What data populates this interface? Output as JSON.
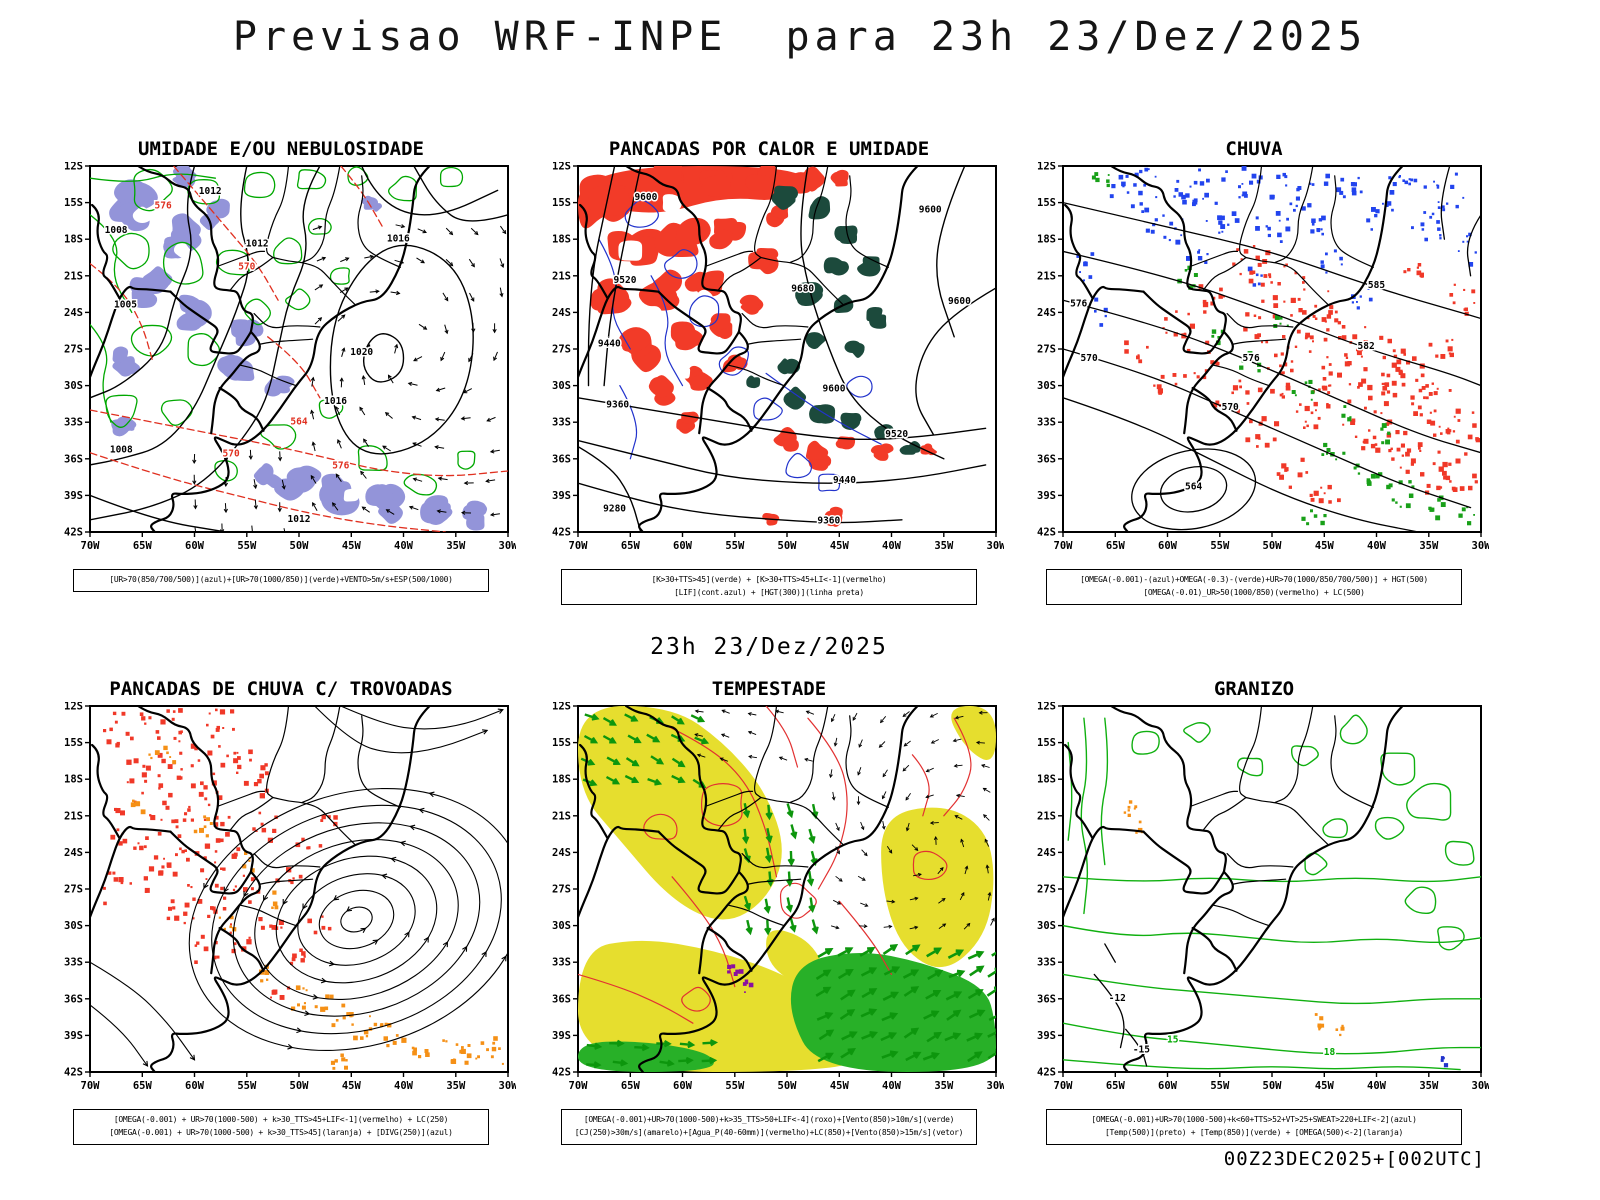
{
  "page": {
    "title": "Previsao WRF-INPE  para 23h 23/Dez/2025",
    "center_time_label": "23h 23/Dez/2025",
    "run_label": "00Z23DEC2025+[002UTC]"
  },
  "axes": {
    "lat_ticks": [
      "12S",
      "15S",
      "18S",
      "21S",
      "24S",
      "27S",
      "30S",
      "33S",
      "36S",
      "39S",
      "42S"
    ],
    "lon_ticks": [
      "70W",
      "65W",
      "60W",
      "55W",
      "50W",
      "45W",
      "40W",
      "35W",
      "30W"
    ]
  },
  "colors": {
    "humidity_fill": "#9394D9",
    "green_contour": "#00A800",
    "red_fill": "#F23B28",
    "red_contour": "#E03020",
    "dark_green_fill": "#1C4A3C",
    "blue_contour": "#2233CC",
    "blue_fill": "#2244EE",
    "orange_fill": "#F59016",
    "yellow_fill": "#E6DE2E",
    "storm_green_fill": "#28B028",
    "green_arrow": "#0D960D",
    "purple_fill": "#8A10A0",
    "black": "#000000"
  },
  "panels": [
    {
      "id": "umidade",
      "title": "UMIDADE E/OU NEBULOSIDADE",
      "caption_lines": [
        "[UR>70(850/700/500)](azul)+[UR>70(1000/850)](verde)+VENTO>5m/s+ESP(500/1000)"
      ],
      "contour_labels": {
        "black": [
          "1008",
          "1012",
          "1016",
          "1012",
          "1005",
          "1020",
          "1008",
          "1016",
          "1012"
        ],
        "red": [
          "576",
          "570",
          "564",
          "570",
          "576"
        ]
      }
    },
    {
      "id": "pancadas-calor",
      "title": "PANCADAS POR CALOR E UMIDADE",
      "caption_lines": [
        "[K>30+TTS>45](verde) + [K>30+TTS>45+LI<-1](vermelho)",
        "[LIF](cont.azul) + [HGT(300)](linha preta)"
      ],
      "contour_labels": {
        "black": [
          "9600",
          "9520",
          "9440",
          "9360",
          "9280",
          "9680",
          "9600",
          "9600",
          "9600",
          "9520",
          "9440",
          "9360"
        ]
      }
    },
    {
      "id": "chuva",
      "title": "CHUVA",
      "caption_lines": [
        "[OMEGA(-0.001)-(azul)+OMEGA(-0.3)-(verde)+UR>70(1000/850/700/500)] + HGT(500)",
        "[OMEGA(-0.01)_UR>50(1000/850)(vermelho) + LC(500)"
      ],
      "contour_labels": {
        "black": [
          "585",
          "582",
          "576",
          "570",
          "564",
          "576",
          "570"
        ]
      }
    },
    {
      "id": "pancadas-trovoadas",
      "title": "PANCADAS DE CHUVA C/ TROVOADAS",
      "caption_lines": [
        "[OMEGA(-0.001) + UR>70(1000-500) + k>30_TTS>45+LIF<-1](vermelho) + LC(250)",
        "[OMEGA(-0.001) + UR>70(1000-500) + k>30_TTS>45](laranja) + [DIVG(250)](azul)"
      ],
      "contour_labels": {}
    },
    {
      "id": "tempestade",
      "title": "TEMPESTADE",
      "caption_lines": [
        "[OMEGA(-0.001)+UR>70(1000-500)+k>35_TTS>50+LIF<-4](roxo)+[Vento(850)>10m/s](verde)",
        "[CJ(250)>30m/s](amarelo)+[Agua_P(40-60mm)](vermelho)+LC(850)+[Vento(850)>15m/s](vetor)"
      ],
      "contour_labels": {}
    },
    {
      "id": "granizo",
      "title": "GRANIZO",
      "caption_lines": [
        "[OMEGA(-0.001)+UR>70(1000-500)+k<60+TTS>52+VT>25+SWEAT>220+LIF<-2](azul)",
        "[Temp(500)](preto) + [Temp(850)](verde) + [OMEGA(500)<-2](laranja)"
      ],
      "contour_labels": {
        "black": [
          "-12",
          "-15"
        ],
        "green": [
          "15",
          "18"
        ]
      }
    }
  ]
}
